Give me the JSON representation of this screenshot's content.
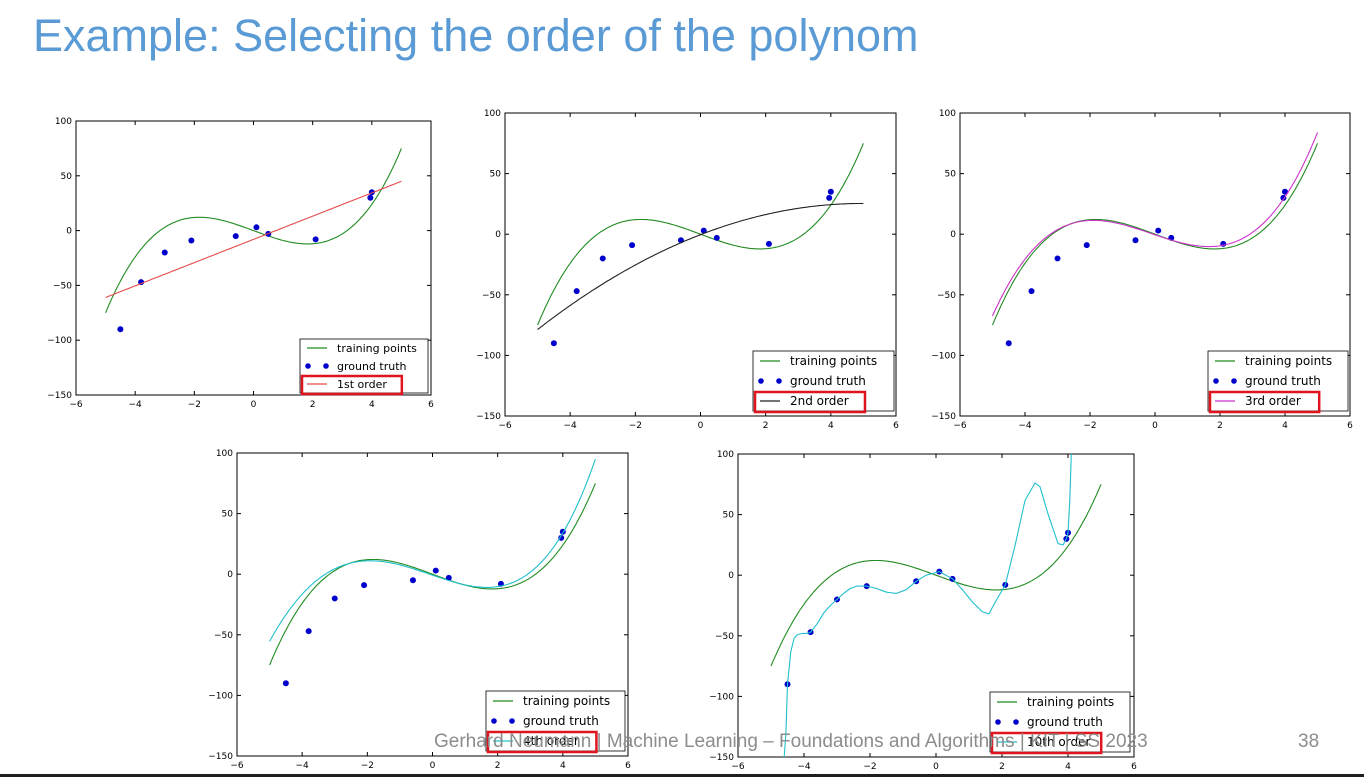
{
  "slide": {
    "title": "Example: Selecting the order of the polynom",
    "footer": "Gerhard Neumann | Machine Learning – Foundations and Algorithms | KIT | SS 2023",
    "page_number": "38",
    "colors": {
      "title": "#5b9bd5",
      "footer": "#8c8c8c",
      "highlight_box": "#e0141e"
    }
  },
  "chart_data": [
    {
      "type": "line",
      "xlim": [
        -6,
        6
      ],
      "ylim": [
        -150,
        100
      ],
      "xticks": [
        -6,
        -4,
        -2,
        0,
        2,
        4,
        6
      ],
      "yticks": [
        -150,
        -100,
        -50,
        0,
        50,
        100
      ],
      "grid": false,
      "legend_position": "lower-right",
      "fit_order": 1,
      "highlighted_entry": "1st order",
      "series": [
        {
          "name": "training points",
          "kind": "line",
          "color": "#228b22",
          "x_range": [
            -5,
            5
          ],
          "poly": [
            0,
            -10,
            0,
            1
          ]
        },
        {
          "name": "ground truth",
          "kind": "points",
          "color": "#0000cc",
          "x": [
            -4.5,
            -3.8,
            -3.0,
            -2.1,
            -0.6,
            0.1,
            0.5,
            2.1,
            3.95,
            4.0
          ],
          "y": [
            -90,
            -47,
            -20,
            -9,
            -5,
            3,
            -3,
            -8,
            30,
            35
          ]
        },
        {
          "name": "1st order",
          "kind": "line",
          "color": "#e34a4a",
          "x_range": [
            -5,
            5
          ],
          "poly": [
            -8,
            10.6
          ]
        }
      ]
    },
    {
      "type": "line",
      "xlim": [
        -6,
        6
      ],
      "ylim": [
        -150,
        100
      ],
      "xticks": [
        -6,
        -4,
        -2,
        0,
        2,
        4,
        6
      ],
      "yticks": [
        -150,
        -100,
        -50,
        0,
        50,
        100
      ],
      "grid": false,
      "legend_position": "lower-right",
      "fit_order": 2,
      "highlighted_entry": "2nd order",
      "series": [
        {
          "name": "training points",
          "kind": "line",
          "color": "#228b22",
          "x_range": [
            -5,
            5
          ],
          "poly": [
            0,
            -10,
            0,
            1
          ]
        },
        {
          "name": "ground truth",
          "kind": "points",
          "color": "#0000cc",
          "x": [
            -4.5,
            -3.8,
            -3.0,
            -2.1,
            -0.6,
            0.1,
            0.5,
            2.1,
            3.95,
            4.0
          ],
          "y": [
            -90,
            -47,
            -20,
            -9,
            -5,
            3,
            -3,
            -8,
            30,
            35
          ]
        },
        {
          "name": "2nd order",
          "kind": "line",
          "color": "#222222",
          "x_range": [
            -5,
            5
          ],
          "poly": [
            -0.4,
            10.4,
            -1.05
          ]
        }
      ]
    },
    {
      "type": "line",
      "xlim": [
        -6,
        6
      ],
      "ylim": [
        -150,
        100
      ],
      "xticks": [
        -6,
        -4,
        -2,
        0,
        2,
        4,
        6
      ],
      "yticks": [
        -150,
        -100,
        -50,
        0,
        50,
        100
      ],
      "grid": false,
      "legend_position": "lower-right",
      "fit_order": 3,
      "highlighted_entry": "3rd order",
      "series": [
        {
          "name": "training points",
          "kind": "line",
          "color": "#228b22",
          "x_range": [
            -5,
            5
          ],
          "poly": [
            0,
            -10,
            0,
            1
          ]
        },
        {
          "name": "ground truth",
          "kind": "points",
          "color": "#0000cc",
          "x": [
            -4.5,
            -3.8,
            -3.0,
            -2.1,
            -0.6,
            0.1,
            0.5,
            2.1,
            3.95,
            4.0
          ],
          "y": [
            -90,
            -47,
            -20,
            -9,
            -5,
            3,
            -3,
            -8,
            30,
            35
          ]
        },
        {
          "name": "3rd order",
          "kind": "line",
          "color": "#cc33cc",
          "x_range": [
            -5,
            5
          ],
          "poly": [
            -0.5,
            -9.1,
            0.35,
            0.97
          ]
        }
      ]
    },
    {
      "type": "line",
      "xlim": [
        -6,
        6
      ],
      "ylim": [
        -150,
        100
      ],
      "xticks": [
        -6,
        -4,
        -2,
        0,
        2,
        4,
        6
      ],
      "yticks": [
        -150,
        -100,
        -50,
        0,
        50,
        100
      ],
      "grid": false,
      "legend_position": "lower-right",
      "fit_order": 4,
      "highlighted_entry": "4th order",
      "series": [
        {
          "name": "training points",
          "kind": "line",
          "color": "#228b22",
          "x_range": [
            -5,
            5
          ],
          "poly": [
            0,
            -10,
            0,
            1
          ]
        },
        {
          "name": "ground truth",
          "kind": "points",
          "color": "#0000cc",
          "x": [
            -4.5,
            -3.8,
            -3.0,
            -2.1,
            -0.6,
            0.1,
            0.5,
            2.1,
            3.95,
            4.0
          ],
          "y": [
            -90,
            -47,
            -20,
            -9,
            -5,
            3,
            -3,
            -8,
            30,
            35
          ]
        },
        {
          "name": "4th order",
          "kind": "line",
          "color": "#20c0cc",
          "x_range": [
            -5,
            5
          ],
          "poly": [
            -0.8,
            -9.2,
            0.2,
            0.97,
            0.025
          ]
        }
      ]
    },
    {
      "type": "line",
      "xlim": [
        -6,
        6
      ],
      "ylim": [
        -150,
        100
      ],
      "xticks": [
        -6,
        -4,
        -2,
        0,
        2,
        4,
        6
      ],
      "yticks": [
        -150,
        -100,
        -50,
        0,
        50,
        100
      ],
      "grid": false,
      "legend_position": "lower-right",
      "fit_order": 10,
      "highlighted_entry": "10th order",
      "series": [
        {
          "name": "training points",
          "kind": "line",
          "color": "#228b22",
          "x_range": [
            -5,
            5
          ],
          "poly": [
            0,
            -10,
            0,
            1
          ]
        },
        {
          "name": "ground truth",
          "kind": "points",
          "color": "#0000cc",
          "x": [
            -4.5,
            -3.8,
            -3.0,
            -2.1,
            -0.6,
            0.1,
            0.5,
            2.1,
            3.95,
            4.0
          ],
          "y": [
            -90,
            -47,
            -20,
            -9,
            -5,
            3,
            -3,
            -8,
            30,
            35
          ]
        },
        {
          "name": "10th order",
          "kind": "line",
          "color": "#20c0cc",
          "clip_to_axes": true,
          "x": [
            -4.6,
            -4.55,
            -4.5,
            -4.4,
            -4.3,
            -4.2,
            -4.05,
            -3.9,
            -3.8,
            -3.6,
            -3.4,
            -3.2,
            -3.0,
            -2.8,
            -2.6,
            -2.4,
            -2.1,
            -1.8,
            -1.5,
            -1.2,
            -0.9,
            -0.6,
            -0.3,
            0.1,
            0.5,
            0.8,
            1.1,
            1.4,
            1.6,
            1.8,
            2.1,
            2.4,
            2.7,
            3.0,
            3.15,
            3.4,
            3.7,
            3.85,
            3.95,
            4.0,
            4.05,
            4.1
          ],
          "y": [
            -150,
            -130,
            -90,
            -63,
            -52,
            -49,
            -48,
            -48,
            -47,
            -40,
            -31,
            -25,
            -20,
            -15,
            -11,
            -9,
            -9,
            -11,
            -14,
            -15,
            -12,
            -5,
            0,
            3,
            -3,
            -12,
            -22,
            -30,
            -32,
            -22,
            -8,
            25,
            62,
            76,
            73,
            50,
            26,
            25,
            30,
            35,
            60,
            100
          ]
        }
      ]
    }
  ]
}
